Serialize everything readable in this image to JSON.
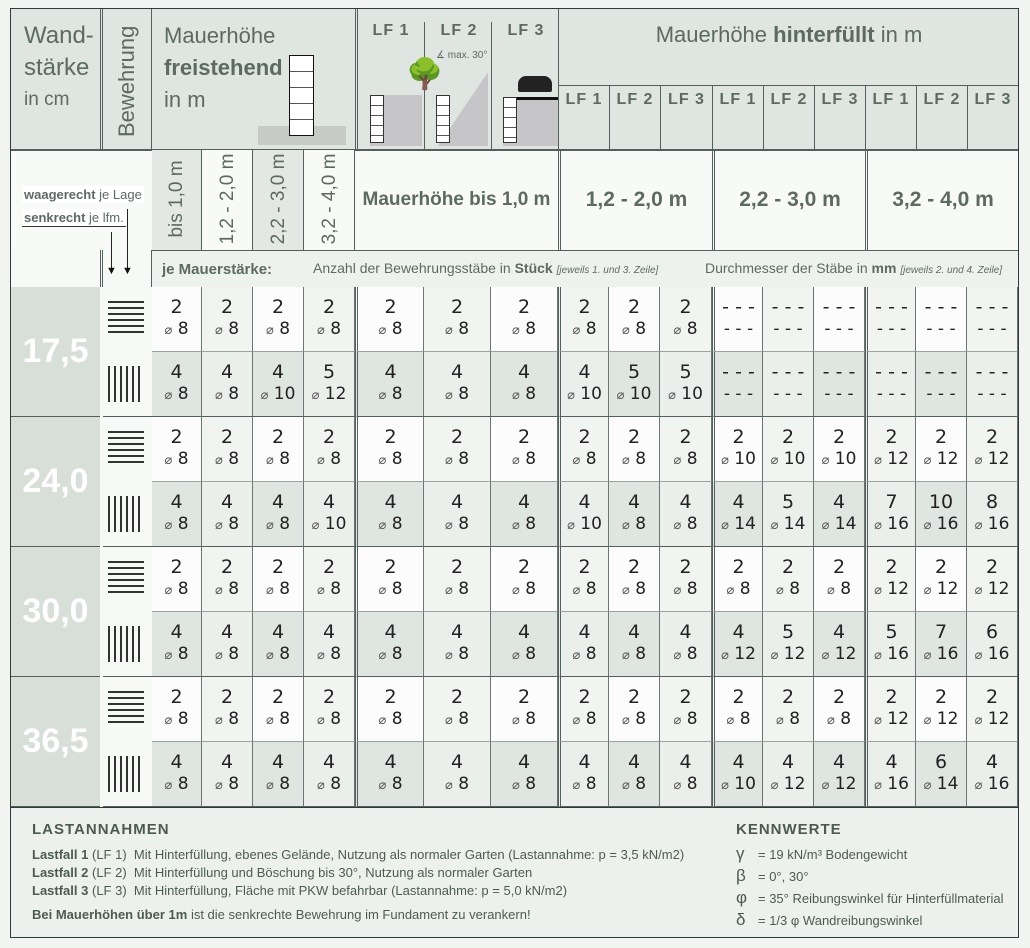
{
  "header": {
    "wall_title": [
      "Wand-",
      "stärke",
      "in cm"
    ],
    "reinforcement": "Bewehrung",
    "free_title": [
      "Mauerhöhe",
      "freistehend",
      "in m"
    ],
    "lf_labels": [
      "LF 1",
      "LF 2",
      "LF 3"
    ],
    "lf2_note": "∡ max. 30°",
    "backfilled_pre": "Mauerhöhe",
    "backfilled_bold": "hinterfüllt",
    "backfilled_post": "in m",
    "free_heights": [
      "bis 1,0 m",
      "1,2 - 2,0 m",
      "2,2 - 3,0 m",
      "3,2 - 4,0 m"
    ],
    "backfilled_heights": [
      "Mauerhöhe bis 1,0 m",
      "1,2 - 2,0 m",
      "2,2 - 3,0 m",
      "3,2 - 4,0 m"
    ],
    "legend_h_bold": "waagerecht",
    "legend_h": "je Lage",
    "legend_v_bold": "senkrecht",
    "legend_v": "je lfm.",
    "per_wall": "je Mauerstärke:",
    "count_text": "Anzahl der Bewehrungsstäbe in",
    "count_bold": "Stück",
    "count_note": "[jeweils 1. und 3. Zeile]",
    "dia_text": "Durchmesser der Stäbe in",
    "dia_bold": "mm",
    "dia_note": "[jeweils 2. und 4. Zeile]"
  },
  "diameter_symbol": "⌀",
  "rows": [
    {
      "wall": "17,5",
      "horizontal": [
        [
          "2",
          "8"
        ],
        [
          "2",
          "8"
        ],
        [
          "2",
          "8"
        ],
        [
          "2",
          "8"
        ],
        [
          "2",
          "8"
        ],
        [
          "2",
          "8"
        ],
        [
          "2",
          "8"
        ],
        [
          "2",
          "8"
        ],
        [
          "2",
          "8"
        ],
        [
          "2",
          "8"
        ],
        [
          "---",
          "---"
        ],
        [
          "---",
          "---"
        ],
        [
          "---",
          "---"
        ],
        [
          "---",
          "---"
        ],
        [
          "---",
          "---"
        ],
        [
          "---",
          "---"
        ]
      ],
      "vertical": [
        [
          "4",
          "8"
        ],
        [
          "4",
          "8"
        ],
        [
          "4",
          "10"
        ],
        [
          "5",
          "12"
        ],
        [
          "4",
          "8"
        ],
        [
          "4",
          "8"
        ],
        [
          "4",
          "8"
        ],
        [
          "4",
          "10"
        ],
        [
          "5",
          "10"
        ],
        [
          "5",
          "10"
        ],
        [
          "---",
          "---"
        ],
        [
          "---",
          "---"
        ],
        [
          "---",
          "---"
        ],
        [
          "---",
          "---"
        ],
        [
          "---",
          "---"
        ],
        [
          "---",
          "---"
        ]
      ]
    },
    {
      "wall": "24,0",
      "horizontal": [
        [
          "2",
          "8"
        ],
        [
          "2",
          "8"
        ],
        [
          "2",
          "8"
        ],
        [
          "2",
          "8"
        ],
        [
          "2",
          "8"
        ],
        [
          "2",
          "8"
        ],
        [
          "2",
          "8"
        ],
        [
          "2",
          "8"
        ],
        [
          "2",
          "8"
        ],
        [
          "2",
          "8"
        ],
        [
          "2",
          "10"
        ],
        [
          "2",
          "10"
        ],
        [
          "2",
          "10"
        ],
        [
          "2",
          "12"
        ],
        [
          "2",
          "12"
        ],
        [
          "2",
          "12"
        ]
      ],
      "vertical": [
        [
          "4",
          "8"
        ],
        [
          "4",
          "8"
        ],
        [
          "4",
          "8"
        ],
        [
          "4",
          "10"
        ],
        [
          "4",
          "8"
        ],
        [
          "4",
          "8"
        ],
        [
          "4",
          "8"
        ],
        [
          "4",
          "10"
        ],
        [
          "4",
          "8"
        ],
        [
          "4",
          "8"
        ],
        [
          "4",
          "14"
        ],
        [
          "5",
          "14"
        ],
        [
          "4",
          "14"
        ],
        [
          "7",
          "16"
        ],
        [
          "10",
          "16"
        ],
        [
          "8",
          "16"
        ]
      ]
    },
    {
      "wall": "30,0",
      "horizontal": [
        [
          "2",
          "8"
        ],
        [
          "2",
          "8"
        ],
        [
          "2",
          "8"
        ],
        [
          "2",
          "8"
        ],
        [
          "2",
          "8"
        ],
        [
          "2",
          "8"
        ],
        [
          "2",
          "8"
        ],
        [
          "2",
          "8"
        ],
        [
          "2",
          "8"
        ],
        [
          "2",
          "8"
        ],
        [
          "2",
          "8"
        ],
        [
          "2",
          "8"
        ],
        [
          "2",
          "8"
        ],
        [
          "2",
          "12"
        ],
        [
          "2",
          "12"
        ],
        [
          "2",
          "12"
        ]
      ],
      "vertical": [
        [
          "4",
          "8"
        ],
        [
          "4",
          "8"
        ],
        [
          "4",
          "8"
        ],
        [
          "4",
          "8"
        ],
        [
          "4",
          "8"
        ],
        [
          "4",
          "8"
        ],
        [
          "4",
          "8"
        ],
        [
          "4",
          "8"
        ],
        [
          "4",
          "8"
        ],
        [
          "4",
          "8"
        ],
        [
          "4",
          "12"
        ],
        [
          "5",
          "12"
        ],
        [
          "4",
          "12"
        ],
        [
          "5",
          "16"
        ],
        [
          "7",
          "16"
        ],
        [
          "6",
          "16"
        ]
      ]
    },
    {
      "wall": "36,5",
      "horizontal": [
        [
          "2",
          "8"
        ],
        [
          "2",
          "8"
        ],
        [
          "2",
          "8"
        ],
        [
          "2",
          "8"
        ],
        [
          "2",
          "8"
        ],
        [
          "2",
          "8"
        ],
        [
          "2",
          "8"
        ],
        [
          "2",
          "8"
        ],
        [
          "2",
          "8"
        ],
        [
          "2",
          "8"
        ],
        [
          "2",
          "8"
        ],
        [
          "2",
          "8"
        ],
        [
          "2",
          "8"
        ],
        [
          "2",
          "12"
        ],
        [
          "2",
          "12"
        ],
        [
          "2",
          "12"
        ]
      ],
      "vertical": [
        [
          "4",
          "8"
        ],
        [
          "4",
          "8"
        ],
        [
          "4",
          "8"
        ],
        [
          "4",
          "8"
        ],
        [
          "4",
          "8"
        ],
        [
          "4",
          "8"
        ],
        [
          "4",
          "8"
        ],
        [
          "4",
          "8"
        ],
        [
          "4",
          "8"
        ],
        [
          "4",
          "8"
        ],
        [
          "4",
          "10"
        ],
        [
          "4",
          "12"
        ],
        [
          "4",
          "12"
        ],
        [
          "4",
          "16"
        ],
        [
          "6",
          "14"
        ],
        [
          "4",
          "16"
        ]
      ]
    }
  ],
  "footer": {
    "load_title": "LASTANNAHMEN",
    "cases": [
      {
        "bold": "Lastfall 1",
        "tag": "(LF 1)",
        "text": "Mit Hinterfüllung, ebenes Gelände, Nutzung als normaler Garten  (Lastannahme: p = 3,5 kN/m2)"
      },
      {
        "bold": "Lastfall 2",
        "tag": "(LF 2)",
        "text": "Mit Hinterfüllung und Böschung bis 30°, Nutzung als normaler Garten"
      },
      {
        "bold": "Lastfall 3",
        "tag": "(LF 3)",
        "text": "Mit Hinterfüllung, Fläche mit PKW befahrbar (Lastannahme: p = 5,0 kN/m2)"
      }
    ],
    "note_bold": "Bei Mauerhöhen über 1m",
    "note": "ist die senkrechte Bewehrung im Fundament zu verankern!",
    "values_title": "KENNWERTE",
    "values": [
      {
        "sym": "γ",
        "val": "= 19  kN/m³  Bodengewicht"
      },
      {
        "sym": "β",
        "val": "=   0°, 30°"
      },
      {
        "sym": "φ",
        "val": "= 35°  Reibungswinkel für Hinterfüllmaterial"
      },
      {
        "sym": "δ",
        "val": "= 1/3 φ  Wandreibungswinkel"
      }
    ]
  }
}
